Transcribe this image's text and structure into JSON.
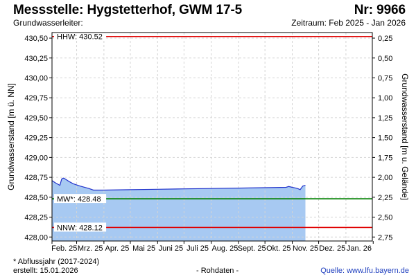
{
  "header": {
    "title": "Messstelle: Hygstetterhof, GWM 17-5",
    "number": "Nr: 9966",
    "aquifer_label": "Grundwasserleiter:",
    "period": "Zeitraum: Feb 2025 - Jan 2026"
  },
  "footer": {
    "footnote": "* Abflussjahr (2017-2024)",
    "created": "erstellt:  15.01.2026",
    "rawdata": "- Rohdaten -",
    "source": "Quelle: www.lfu.bayern.de"
  },
  "colors": {
    "hhw": "#e00000",
    "mw": "#008000",
    "nnw": "#e00000",
    "line": "#2233cc",
    "fill": "#a7c9f2",
    "grid": "#d4d4d4"
  },
  "chart_data": {
    "type": "area",
    "title": "Messstelle: Hygstetterhof, GWM 17-5",
    "ylabel": "Grundwasserstand [m ü. NN]",
    "y2label": "Grundwasserstand [m u. Gelände]",
    "ylim": [
      427.95,
      430.57
    ],
    "y2lim": [
      2.8,
      0.18
    ],
    "y_ticks": [
      "430,50",
      "430,25",
      "430,00",
      "429,75",
      "429,50",
      "429,25",
      "429,00",
      "428,75",
      "428,50",
      "428,25",
      "428,00"
    ],
    "y_tick_values": [
      430.5,
      430.25,
      430.0,
      429.75,
      429.5,
      429.25,
      429.0,
      428.75,
      428.5,
      428.25,
      428.0
    ],
    "y2_ticks": [
      "0,25",
      "0,50",
      "0,75",
      "1,00",
      "1,25",
      "1,50",
      "1,75",
      "2,00",
      "2,25",
      "2,50",
      "2,75"
    ],
    "y2_tick_values": [
      0.25,
      0.5,
      0.75,
      1.0,
      1.25,
      1.5,
      1.75,
      2.0,
      2.25,
      2.5,
      2.75
    ],
    "x_ticks": [
      "Feb. 25",
      "Mrz. 25",
      "Apr. 25",
      "Mai 25",
      "Juni 25",
      "Juli 25",
      "Aug. 25",
      "Sept. 25",
      "Okt. 25",
      "Nov. 25",
      "Dez. 25",
      "Jan. 26"
    ],
    "x_range": [
      "2025-02-01",
      "2026-01-31"
    ],
    "grid": true,
    "reference_lines": [
      {
        "label": "HHW: 430.52",
        "value": 430.52,
        "color": "#e00000"
      },
      {
        "label": "MW*: 428.48",
        "value": 428.48,
        "color": "#008000"
      },
      {
        "label": "NNW: 428.12",
        "value": 428.12,
        "color": "#e00000"
      }
    ],
    "series": [
      {
        "x": [
          "2025-02-01",
          "2025-02-05",
          "2025-02-10",
          "2025-02-12",
          "2025-02-14",
          "2025-02-16",
          "2025-02-20",
          "2025-02-25",
          "2025-03-05",
          "2025-03-15",
          "2025-03-20",
          "2025-04-01",
          "2025-05-01",
          "2025-06-01",
          "2025-07-01",
          "2025-08-01",
          "2025-09-01",
          "2025-10-01",
          "2025-10-25",
          "2025-10-28",
          "2025-11-01",
          "2025-11-05",
          "2025-11-08",
          "2025-11-10",
          "2025-11-13",
          "2025-11-16"
        ],
        "y": [
          428.71,
          428.68,
          428.65,
          428.73,
          428.74,
          428.73,
          428.7,
          428.67,
          428.64,
          428.61,
          428.59,
          428.59,
          428.595,
          428.6,
          428.605,
          428.61,
          428.615,
          428.62,
          428.625,
          428.635,
          428.625,
          428.615,
          428.605,
          428.595,
          428.64,
          428.65
        ]
      }
    ]
  }
}
